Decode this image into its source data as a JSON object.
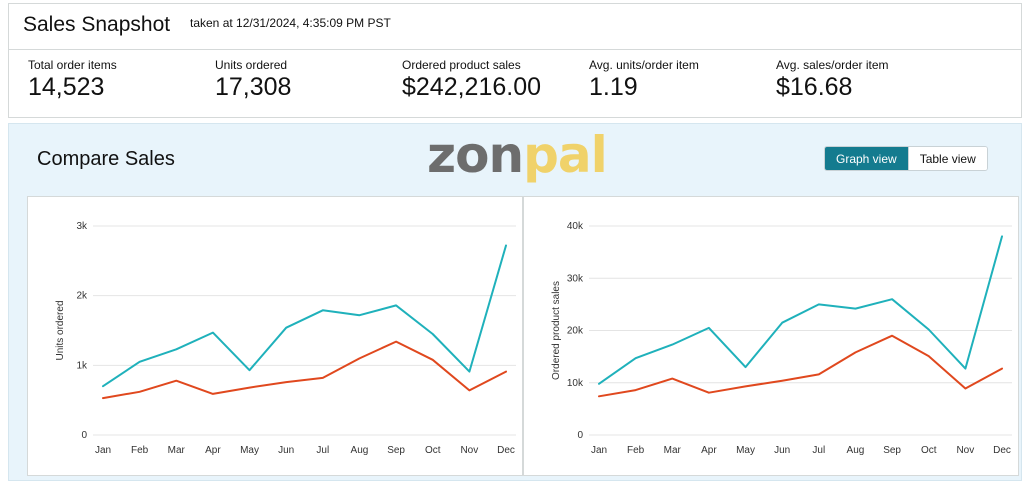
{
  "header": {
    "title": "Sales Snapshot",
    "timestamp": "taken at 12/31/2024, 4:35:09 PM PST"
  },
  "metrics": [
    {
      "label": "Total order items",
      "value": "14,523"
    },
    {
      "label": "Units ordered",
      "value": "17,308"
    },
    {
      "label": "Ordered product sales",
      "value": "$242,216.00"
    },
    {
      "label": "Avg. units/order item",
      "value": "1.19"
    },
    {
      "label": "Avg. sales/order item",
      "value": "$16.68"
    }
  ],
  "compare": {
    "title": "Compare Sales",
    "logo_part1": "zon",
    "logo_part2": "pal",
    "graph_view_label": "Graph view",
    "table_view_label": "Table view"
  },
  "colors": {
    "teal": "#1fb1bb",
    "orange": "#e0481e",
    "accent": "#147b8f"
  },
  "chart_data": [
    {
      "type": "line",
      "ylabel": "Units ordered",
      "xlabel": "",
      "categories": [
        "Jan",
        "Feb",
        "Mar",
        "Apr",
        "May",
        "Jun",
        "Jul",
        "Aug",
        "Sep",
        "Oct",
        "Nov",
        "Dec"
      ],
      "ylim": [
        0,
        3000
      ],
      "yticks": [
        0,
        1000,
        2000,
        3000
      ],
      "ytick_labels": [
        "0",
        "1k",
        "2k",
        "3k"
      ],
      "grid": true,
      "series": [
        {
          "color": "#1fb1bb",
          "values": [
            700,
            1050,
            1230,
            1470,
            930,
            1540,
            1790,
            1720,
            1860,
            1450,
            910,
            2720
          ]
        },
        {
          "color": "#e0481e",
          "values": [
            530,
            620,
            780,
            590,
            680,
            760,
            820,
            1100,
            1340,
            1080,
            640,
            910
          ]
        }
      ]
    },
    {
      "type": "line",
      "ylabel": "Ordered product sales",
      "xlabel": "",
      "categories": [
        "Jan",
        "Feb",
        "Mar",
        "Apr",
        "May",
        "Jun",
        "Jul",
        "Aug",
        "Sep",
        "Oct",
        "Nov",
        "Dec"
      ],
      "ylim": [
        0,
        40000
      ],
      "yticks": [
        0,
        10000,
        20000,
        30000,
        40000
      ],
      "ytick_labels": [
        "0",
        "10k",
        "20k",
        "30k",
        "40k"
      ],
      "grid": true,
      "series": [
        {
          "color": "#1fb1bb",
          "values": [
            9800,
            14700,
            17300,
            20500,
            13000,
            21500,
            25000,
            24200,
            26000,
            20200,
            12700,
            38000
          ]
        },
        {
          "color": "#e0481e",
          "values": [
            7400,
            8600,
            10800,
            8100,
            9300,
            10400,
            11600,
            15800,
            19000,
            15100,
            8900,
            12700
          ]
        }
      ]
    }
  ]
}
